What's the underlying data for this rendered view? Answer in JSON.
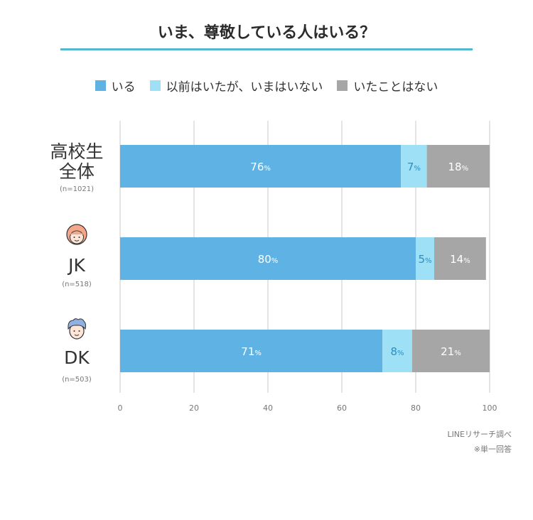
{
  "title": "いま、尊敬している人はいる？",
  "legend": [
    {
      "label": "いる",
      "color": "#5fb3e4"
    },
    {
      "label": "以前はいたが、いまはいない",
      "color": "#9ee0f5"
    },
    {
      "label": "いたことはない",
      "color": "#a6a6a6"
    }
  ],
  "chart_data": {
    "type": "bar",
    "orientation": "horizontal",
    "stacked": true,
    "xlim": [
      0,
      100
    ],
    "x_ticks": [
      "0",
      "20",
      "40",
      "60",
      "80",
      "100"
    ],
    "grid": true,
    "legend_position": "top",
    "categories": [
      {
        "label_lines": [
          "高校生",
          "全体"
        ],
        "n": "(n=1021)",
        "icon": ""
      },
      {
        "label_lines": [
          "JK"
        ],
        "n": "(n=518)",
        "icon": "girl-face-icon"
      },
      {
        "label_lines": [
          "DK"
        ],
        "n": "(n=503)",
        "icon": "boy-face-icon"
      }
    ],
    "series": [
      {
        "name": "いる",
        "values": [
          76,
          80,
          71
        ],
        "labels": [
          "76",
          "80",
          "71"
        ],
        "color": "#5fb3e4",
        "label_color": "#ffffff"
      },
      {
        "name": "以前はいたが、いまはいない",
        "values": [
          7,
          5,
          8
        ],
        "labels": [
          "7",
          "5",
          "8"
        ],
        "color": "#9ee0f5",
        "label_color": "#2a8fc4"
      },
      {
        "name": "いたことはない",
        "values": [
          18,
          14,
          21
        ],
        "labels": [
          "18",
          "14",
          "21"
        ],
        "color": "#a6a6a6",
        "label_color": "#ffffff"
      }
    ],
    "value_suffix": "%"
  },
  "footnotes": [
    "LINEリサーチ調べ",
    "※単一回答"
  ],
  "colors": {
    "accent": "#56b6d0",
    "grid": "#e4e4e4",
    "category_label": "#333333",
    "n_label": "#777777"
  }
}
